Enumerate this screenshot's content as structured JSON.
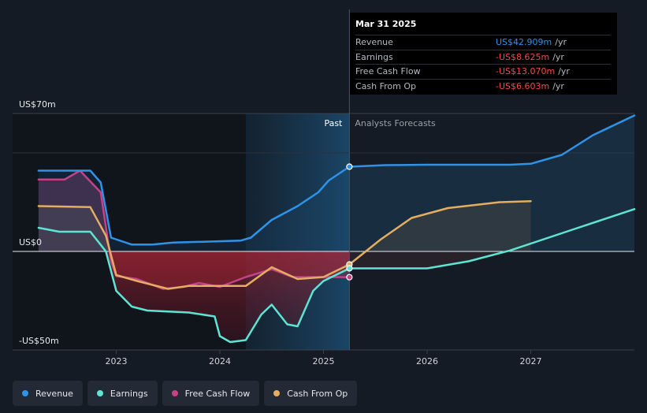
{
  "chart_data": {
    "type": "line",
    "x_unit": "year",
    "x_ticks": [
      "2023",
      "2024",
      "2025",
      "2026",
      "2027"
    ],
    "y_ticks": [
      {
        "value": 70,
        "label": "US$70m"
      },
      {
        "value": 0,
        "label": "US$0"
      },
      {
        "value": -50,
        "label": "-US$50m"
      }
    ],
    "ylim": [
      -50,
      70
    ],
    "past_label": "Past",
    "forecast_label": "Analysts Forecasts",
    "past_end": 2025.25,
    "series": [
      {
        "name": "Revenue",
        "color": "#2e93e8",
        "key": "revenue",
        "past": [
          [
            2022.25,
            41.0
          ],
          [
            2022.75,
            41.0
          ],
          [
            2022.85,
            35
          ],
          [
            2022.95,
            7
          ],
          [
            2023.15,
            3.5
          ],
          [
            2023.35,
            3.5
          ],
          [
            2023.55,
            4.5
          ],
          [
            2023.9,
            5
          ],
          [
            2024.2,
            5.5
          ],
          [
            2024.3,
            7
          ],
          [
            2024.5,
            16
          ],
          [
            2024.75,
            23
          ],
          [
            2024.95,
            30
          ],
          [
            2025.05,
            36
          ],
          [
            2025.25,
            43
          ]
        ],
        "forecast": [
          [
            2025.25,
            43
          ],
          [
            2025.6,
            43.8
          ],
          [
            2026.0,
            44
          ],
          [
            2026.8,
            44
          ],
          [
            2027.0,
            44.5
          ],
          [
            2027.3,
            49
          ],
          [
            2027.6,
            59
          ],
          [
            2028.0,
            69
          ]
        ]
      },
      {
        "name": "Earnings",
        "color": "#5de4d3",
        "key": "earnings",
        "past": [
          [
            2022.25,
            12
          ],
          [
            2022.45,
            10
          ],
          [
            2022.75,
            10
          ],
          [
            2022.9,
            0
          ],
          [
            2023.0,
            -20
          ],
          [
            2023.15,
            -28
          ],
          [
            2023.3,
            -30
          ],
          [
            2023.7,
            -31
          ],
          [
            2023.95,
            -33
          ],
          [
            2024.0,
            -43
          ],
          [
            2024.1,
            -46
          ],
          [
            2024.25,
            -45
          ],
          [
            2024.4,
            -32
          ],
          [
            2024.5,
            -27
          ],
          [
            2024.65,
            -37
          ],
          [
            2024.75,
            -38
          ],
          [
            2024.9,
            -20
          ],
          [
            2025.0,
            -15
          ],
          [
            2025.25,
            -8.6
          ]
        ],
        "forecast": [
          [
            2025.25,
            -8.6
          ],
          [
            2025.6,
            -8.6
          ],
          [
            2026.0,
            -8.6
          ],
          [
            2026.4,
            -5
          ],
          [
            2026.8,
            0.5
          ],
          [
            2027.4,
            11
          ],
          [
            2028.0,
            21.5
          ]
        ]
      },
      {
        "name": "Free Cash Flow",
        "color": "#c44286",
        "key": "fcf",
        "past": [
          [
            2022.25,
            36.5
          ],
          [
            2022.5,
            36.5
          ],
          [
            2022.65,
            41
          ],
          [
            2022.85,
            30
          ],
          [
            2022.95,
            -5
          ],
          [
            2023.0,
            -12.5
          ],
          [
            2023.2,
            -14
          ],
          [
            2023.45,
            -19
          ],
          [
            2023.65,
            -18
          ],
          [
            2023.8,
            -16
          ],
          [
            2024.0,
            -18
          ],
          [
            2024.25,
            -13
          ],
          [
            2024.5,
            -9
          ],
          [
            2024.7,
            -13
          ],
          [
            2024.95,
            -13
          ],
          [
            2025.1,
            -13
          ],
          [
            2025.25,
            -13.07
          ]
        ],
        "forecast": []
      },
      {
        "name": "Cash From Op",
        "color": "#e3ad62",
        "key": "cfo",
        "past": [
          [
            2022.25,
            23
          ],
          [
            2022.75,
            22.5
          ],
          [
            2022.9,
            8
          ],
          [
            2023.0,
            -12
          ],
          [
            2023.2,
            -15
          ],
          [
            2023.5,
            -19
          ],
          [
            2023.7,
            -17.5
          ],
          [
            2023.95,
            -17.5
          ],
          [
            2024.25,
            -17.5
          ],
          [
            2024.5,
            -8
          ],
          [
            2024.75,
            -14
          ],
          [
            2025.0,
            -13
          ],
          [
            2025.25,
            -6.6
          ]
        ],
        "forecast": [
          [
            2025.25,
            -6.6
          ],
          [
            2025.55,
            6
          ],
          [
            2025.85,
            17
          ],
          [
            2026.2,
            22
          ],
          [
            2026.7,
            25
          ],
          [
            2027.0,
            25.5
          ]
        ]
      }
    ]
  },
  "tooltip": {
    "date": "Mar 31 2025",
    "rows": [
      {
        "name": "Revenue",
        "value": "US$42.909m",
        "unit": "/yr",
        "color": "#2e93e8"
      },
      {
        "name": "Earnings",
        "value": "-US$8.625m",
        "unit": "/yr",
        "color": "#ef4b4b"
      },
      {
        "name": "Free Cash Flow",
        "value": "-US$13.070m",
        "unit": "/yr",
        "color": "#ef4b4b"
      },
      {
        "name": "Cash From Op",
        "value": "-US$6.603m",
        "unit": "/yr",
        "color": "#ef4b4b"
      }
    ]
  },
  "legend": [
    {
      "label": "Revenue",
      "color": "#2e93e8"
    },
    {
      "label": "Earnings",
      "color": "#5de4d3"
    },
    {
      "label": "Free Cash Flow",
      "color": "#c44286"
    },
    {
      "label": "Cash From Op",
      "color": "#e3ad62"
    }
  ]
}
